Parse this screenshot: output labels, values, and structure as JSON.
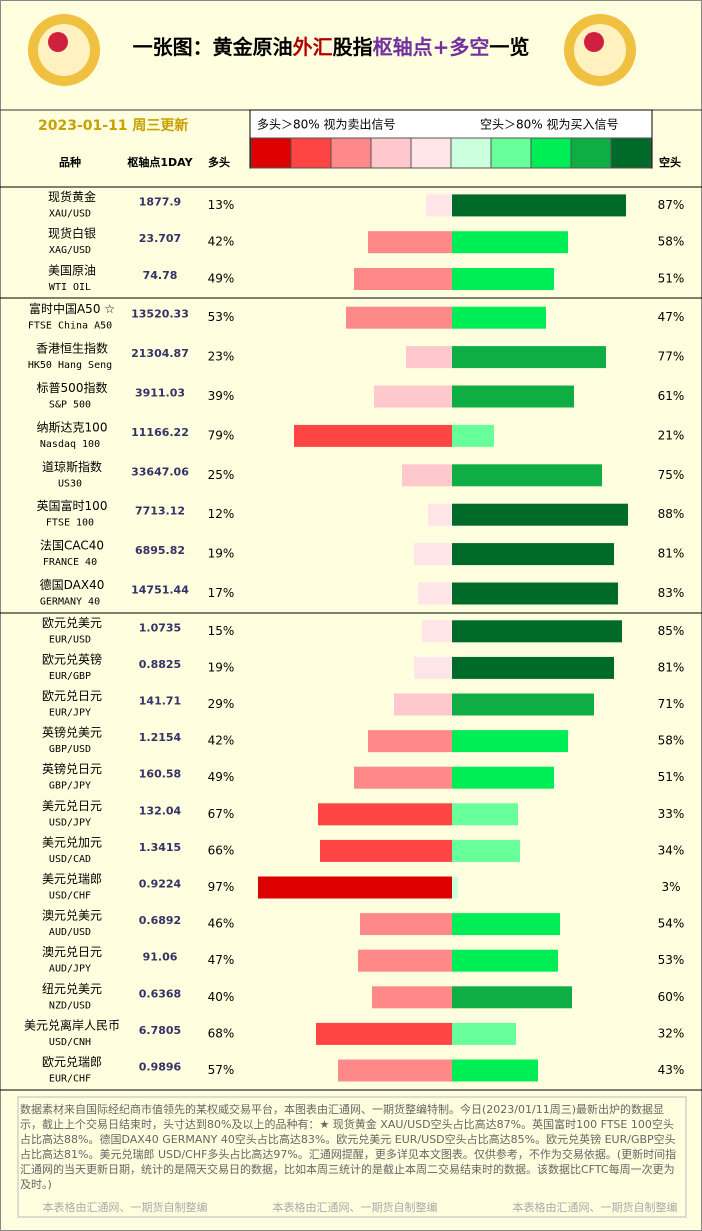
{
  "header": {
    "title_parts": [
      {
        "text": "一张图：黄金原油",
        "color": "#000000"
      },
      {
        "text": "外汇",
        "color": "#b00000"
      },
      {
        "text": "股指",
        "color": "#000000"
      },
      {
        "text": "枢轴点+多空",
        "color": "#7030a0"
      },
      {
        "text": "一览",
        "color": "#000000"
      }
    ],
    "date": "2023-01-11 周三更新",
    "legend_left": "多头＞80% 视为卖出信号",
    "legend_right": "空头＞80% 视为买入信号",
    "legend_colors": [
      "#dd0000",
      "#ff4444",
      "#ff8888",
      "#ffc8cc",
      "#ffe4e8",
      "#ccffdd",
      "#66ff99",
      "#00ee55",
      "#0fae45",
      "#006a2a"
    ]
  },
  "columns": {
    "name": "品种",
    "pivot": "枢轴点1DAY",
    "long": "多头",
    "short": "空头"
  },
  "groups": [
    {
      "rows": [
        {
          "name": "现货黄金",
          "code": "XAU/USD",
          "pivot": 1877.9,
          "long": {
            "value": 13,
            "label": "13%"
          },
          "short": {
            "value": 87,
            "label": "87%"
          }
        },
        {
          "name": "现货白银",
          "code": "XAG/USD",
          "pivot": 23.707,
          "long": {
            "value": 42,
            "label": "42%"
          },
          "short": {
            "value": 58,
            "label": "58%"
          }
        },
        {
          "name": "美国原油",
          "code": "WTI OIL",
          "pivot": 74.78,
          "long": {
            "value": 49,
            "label": "49%"
          },
          "short": {
            "value": 51,
            "label": "51%"
          }
        }
      ]
    },
    {
      "rows": [
        {
          "name": "富时中国A50 ☆",
          "code": "FTSE China A50",
          "pivot": 13520.33,
          "long": {
            "value": 53,
            "label": "53%"
          },
          "short": {
            "value": 47,
            "label": "47%"
          }
        },
        {
          "name": "香港恒生指数",
          "code": "HK50 Hang Seng",
          "pivot": 21304.87,
          "long": {
            "value": 23,
            "label": "23%"
          },
          "short": {
            "value": 77,
            "label": "77%"
          }
        },
        {
          "name": "标普500指数",
          "code": "S&P 500",
          "pivot": 3911.03,
          "long": {
            "value": 39,
            "label": "39%"
          },
          "short": {
            "value": 61,
            "label": "61%"
          }
        },
        {
          "name": "纳斯达克100",
          "code": "Nasdaq 100",
          "pivot": 11166.22,
          "long": {
            "value": 79,
            "label": "79%"
          },
          "short": {
            "value": 21,
            "label": "21%"
          }
        },
        {
          "name": "道琼斯指数",
          "code": "US30",
          "pivot": 33647.06,
          "long": {
            "value": 25,
            "label": "25%"
          },
          "short": {
            "value": 75,
            "label": "75%"
          }
        },
        {
          "name": "英国富时100",
          "code": "FTSE 100",
          "pivot": 7713.12,
          "long": {
            "value": 12,
            "label": "12%"
          },
          "short": {
            "value": 88,
            "label": "88%"
          }
        },
        {
          "name": "法国CAC40",
          "code": "FRANCE 40",
          "pivot": 6895.82,
          "long": {
            "value": 19,
            "label": "19%"
          },
          "short": {
            "value": 81,
            "label": "81%"
          }
        },
        {
          "name": "德国DAX40",
          "code": "GERMANY 40",
          "pivot": 14751.44,
          "long": {
            "value": 17,
            "label": "17%"
          },
          "short": {
            "value": 83,
            "label": "83%"
          }
        }
      ]
    },
    {
      "rows": [
        {
          "name": "欧元兑美元",
          "code": "EUR/USD",
          "pivot": 1.0735,
          "long": {
            "value": 15,
            "label": "15%"
          },
          "short": {
            "value": 85,
            "label": "85%"
          }
        },
        {
          "name": "欧元兑英镑",
          "code": "EUR/GBP",
          "pivot": 0.8825,
          "long": {
            "value": 19,
            "label": "19%"
          },
          "short": {
            "value": 81,
            "label": "81%"
          }
        },
        {
          "name": "欧元兑日元",
          "code": "EUR/JPY",
          "pivot": 141.71,
          "long": {
            "value": 29,
            "label": "29%"
          },
          "short": {
            "value": 71,
            "label": "71%"
          }
        },
        {
          "name": "英镑兑美元",
          "code": "GBP/USD",
          "pivot": 1.2154,
          "long": {
            "value": 42,
            "label": "42%"
          },
          "short": {
            "value": 58,
            "label": "58%"
          }
        },
        {
          "name": "英镑兑日元",
          "code": "GBP/JPY",
          "pivot": 160.58,
          "long": {
            "value": 49,
            "label": "49%"
          },
          "short": {
            "value": 51,
            "label": "51%"
          }
        },
        {
          "name": "美元兑日元",
          "code": "USD/JPY",
          "pivot": 132.04,
          "long": {
            "value": 67,
            "label": "67%"
          },
          "short": {
            "value": 33,
            "label": "33%"
          }
        },
        {
          "name": "美元兑加元",
          "code": "USD/CAD",
          "pivot": 1.3415,
          "long": {
            "value": 66,
            "label": "66%"
          },
          "short": {
            "value": 34,
            "label": "34%"
          }
        },
        {
          "name": "美元兑瑞郎",
          "code": "USD/CHF",
          "pivot": 0.9224,
          "long": {
            "value": 97,
            "label": "97%"
          },
          "short": {
            "value": 3,
            "label": "3%"
          }
        },
        {
          "name": "澳元兑美元",
          "code": "AUD/USD",
          "pivot": 0.6892,
          "long": {
            "value": 46,
            "label": "46%"
          },
          "short": {
            "value": 54,
            "label": "54%"
          }
        },
        {
          "name": "澳元兑日元",
          "code": "AUD/JPY",
          "pivot": 91.06,
          "long": {
            "value": 47,
            "label": "47%"
          },
          "short": {
            "value": 53,
            "label": "53%"
          }
        },
        {
          "name": "纽元兑美元",
          "code": "NZD/USD",
          "pivot": 0.6368,
          "long": {
            "value": 40,
            "label": "40%"
          },
          "short": {
            "value": 60,
            "label": "60%"
          }
        },
        {
          "name": "美元兑离岸人民币",
          "code": "USD/CNH",
          "pivot": 6.7805,
          "long": {
            "value": 68,
            "label": "68%"
          },
          "short": {
            "value": 32,
            "label": "32%"
          }
        },
        {
          "name": "欧元兑瑞郎",
          "code": "EUR/CHF",
          "pivot": 0.9896,
          "long": {
            "value": 57,
            "label": "57%"
          },
          "short": {
            "value": 43,
            "label": "43%"
          }
        }
      ]
    }
  ],
  "footer": {
    "text": "数据素材来自国际经纪商市值领先的某权威交易平台，本图表由汇通网、一期货整编特制。今日(2023/01/11周三)最新出炉的数据显示，截止上个交易日结束时，头寸达到80%及以上的品种有：★ 现货黄金 XAU/USD空头占比高达87%。英国富时100 FTSE 100空头占比高达88%。德国DAX40 GERMANY 40空头占比高达83%。欧元兑美元 EUR/USD空头占比高达85%。欧元兑英镑 EUR/GBP空头占比高达81%。美元兑瑞郎 USD/CHF多头占比高达97%。汇通网提醒，更多详见本文图表。仅供参考，不作为交易依据。(更新时间指汇通网的当天更新日期，统计的是隔天交易日的数据，比如本周三统计的是截止本周二交易结束时的数据。该数据比CFTC每周一次更为及时。)",
    "watermark": "本表格由汇通网、一期货自制整编"
  }
}
